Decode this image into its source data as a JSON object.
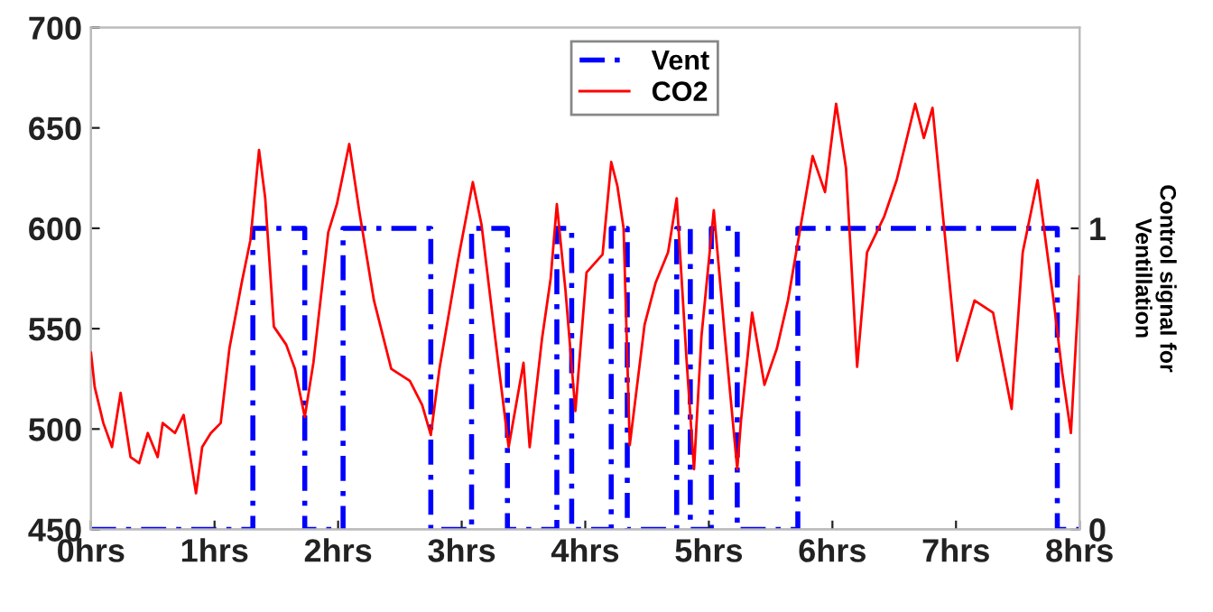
{
  "chart_data": {
    "type": "line",
    "y2label": "Control signal for\nVentillation",
    "legend": "top",
    "grid": false,
    "xlim": [
      0,
      8
    ],
    "xticks": [
      {
        "value": 0,
        "label": "0hrs"
      },
      {
        "value": 1,
        "label": "1hrs"
      },
      {
        "value": 2,
        "label": "2hrs"
      },
      {
        "value": 3,
        "label": "3hrs"
      },
      {
        "value": 4,
        "label": "4hrs"
      },
      {
        "value": 5,
        "label": "5hrs"
      },
      {
        "value": 6,
        "label": "6hrs"
      },
      {
        "value": 7,
        "label": "7hrs"
      },
      {
        "value": 8,
        "label": "8hrs"
      }
    ],
    "ylim": [
      450,
      700
    ],
    "yticks": [
      450,
      500,
      550,
      600,
      650,
      700
    ],
    "y2lim": [
      0,
      1.667
    ],
    "y2ticks": [
      0,
      1
    ],
    "series": [
      {
        "name": "Vent",
        "type": "step",
        "axis": "y2",
        "color": "#0000ff",
        "line_style": "dashed",
        "x": [
          0,
          1.31,
          1.73,
          2.04,
          2.75,
          3.08,
          3.37,
          3.77,
          3.89,
          4.21,
          4.34,
          4.74,
          4.85,
          5.02,
          5.23,
          5.72,
          7.82,
          8
        ],
        "values": [
          0,
          1,
          0,
          1,
          0,
          1,
          0,
          1,
          0,
          1,
          0,
          1,
          0,
          1,
          0,
          1,
          0,
          0
        ]
      },
      {
        "name": "CO2",
        "axis": "y",
        "color": "#ff0000",
        "line_style": "solid",
        "x": [
          0,
          0.03,
          0.1,
          0.17,
          0.24,
          0.32,
          0.39,
          0.46,
          0.54,
          0.58,
          0.68,
          0.75,
          0.85,
          0.9,
          0.97,
          1.05,
          1.12,
          1.22,
          1.29,
          1.36,
          1.41,
          1.48,
          1.58,
          1.65,
          1.73,
          1.8,
          1.92,
          1.99,
          2.09,
          2.17,
          2.29,
          2.43,
          2.58,
          2.68,
          2.75,
          2.82,
          2.97,
          3.09,
          3.16,
          3.26,
          3.38,
          3.5,
          3.55,
          3.65,
          3.72,
          3.77,
          3.84,
          3.92,
          4.01,
          4.14,
          4.21,
          4.26,
          4.31,
          4.36,
          4.48,
          4.57,
          4.67,
          4.74,
          4.82,
          4.88,
          4.94,
          5.04,
          5.13,
          5.23,
          5.26,
          5.35,
          5.45,
          5.55,
          5.64,
          5.74,
          5.84,
          5.94,
          6.03,
          6.11,
          6.2,
          6.28,
          6.42,
          6.52,
          6.67,
          6.74,
          6.81,
          6.89,
          7.01,
          7.15,
          7.3,
          7.45,
          7.54,
          7.66,
          7.79,
          7.86,
          7.93,
          8.0
        ],
        "values": [
          538,
          521,
          503,
          491,
          518,
          486,
          483,
          498,
          486,
          503,
          498,
          507,
          468,
          491,
          498,
          503,
          540,
          573,
          594,
          639,
          615,
          551,
          542,
          530,
          506,
          533,
          598,
          612,
          642,
          609,
          564,
          530,
          524,
          512,
          497,
          530,
          584,
          623,
          602,
          551,
          491,
          533,
          491,
          545,
          575,
          612,
          569,
          509,
          578,
          587,
          633,
          621,
          600,
          492,
          552,
          573,
          588,
          615,
          534,
          480,
          546,
          609,
          546,
          480,
          504,
          558,
          522,
          540,
          564,
          600,
          636,
          618,
          662,
          630,
          531,
          588,
          606,
          624,
          662,
          645,
          660,
          609,
          534,
          564,
          558,
          510,
          588,
          624,
          564,
          528,
          498,
          576
        ]
      }
    ]
  }
}
